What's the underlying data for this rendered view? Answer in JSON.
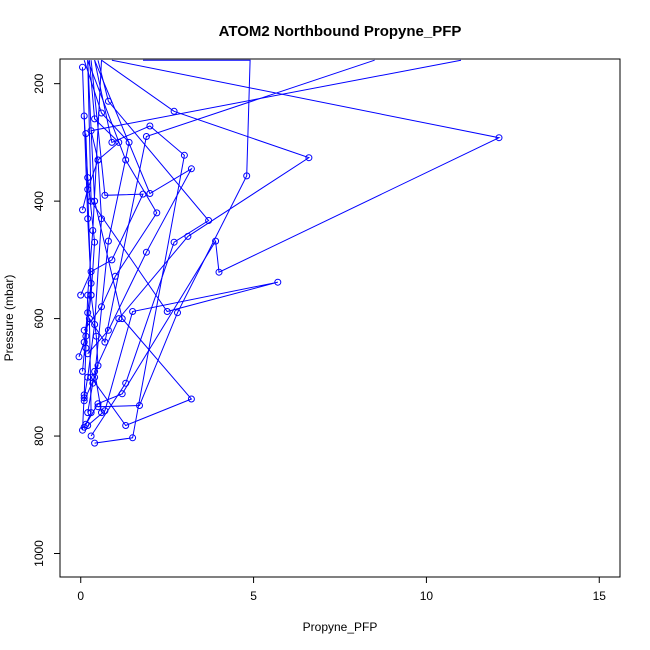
{
  "chart_data": {
    "type": "line",
    "title": "ATOM2 Northbound Propyne_PFP",
    "xlabel": "Propyne_PFP",
    "ylabel": "Pressure (mbar)",
    "xlim": [
      -0.6,
      15.6
    ],
    "ylim": [
      1040,
      158
    ],
    "y_reversed": true,
    "grid": false,
    "x_ticks": [
      0,
      5,
      10,
      15
    ],
    "x_tick_labels": [
      "0",
      "5",
      "10",
      "15"
    ],
    "y_ticks": [
      200,
      400,
      600,
      800,
      1000
    ],
    "y_tick_labels": [
      "200",
      "400",
      "600",
      "800",
      "1000"
    ],
    "series_color": "#0000ff",
    "marker": "open-circle",
    "series": [
      {
        "x": [
          0.05,
          0.1,
          0.15,
          0.2,
          0.35,
          0.6
        ],
        "y": [
          790,
          730,
          650,
          560,
          450,
          160
        ]
      },
      {
        "x": [
          0.3,
          1.3,
          2.7,
          3.7,
          0.8,
          0.5
        ],
        "y": [
          800,
          710,
          470,
          433,
          230,
          160
        ]
      },
      {
        "x": [
          0.4,
          1.5,
          3.0,
          2.0,
          0.9,
          0.4
        ],
        "y": [
          812,
          803,
          322,
          272,
          300,
          160
        ]
      },
      {
        "x": [
          0.1,
          0.5,
          1.2,
          3.9,
          4.0,
          12.1,
          0.9
        ],
        "y": [
          785,
          745,
          728,
          468,
          521,
          292,
          160
        ]
      },
      {
        "x": [
          0.2,
          0.7,
          1.5,
          5.7,
          2.5,
          0.3,
          0.2
        ],
        "y": [
          782,
          757,
          588,
          538,
          588,
          400,
          160
        ]
      },
      {
        "x": [
          0.6,
          0.4,
          1.1,
          3.1,
          6.6,
          2.7,
          0.6
        ],
        "y": [
          760,
          690,
          600,
          460,
          326,
          247,
          160
        ]
      },
      {
        "x": [
          0.3,
          1.3,
          3.2,
          1.2,
          0.4,
          0.2
        ],
        "y": [
          700,
          782,
          737,
          600,
          400,
          160
        ]
      },
      {
        "x": [
          0.5,
          1.7,
          2.8,
          4.8,
          4.9,
          1.8
        ],
        "y": [
          750,
          748,
          590,
          357,
          160,
          160
        ]
      },
      {
        "x": [
          0.2,
          0.8,
          1.9,
          3.2,
          2.0,
          0.4
        ],
        "y": [
          660,
          620,
          487,
          345,
          387,
          160
        ]
      },
      {
        "x": [
          0.1,
          0.6,
          1.0,
          2.2,
          1.3,
          0.2
        ],
        "y": [
          620,
          580,
          528,
          420,
          330,
          160
        ]
      },
      {
        "x": [
          0.0,
          0.3,
          0.9,
          1.8,
          0.7,
          0.3
        ],
        "y": [
          560,
          520,
          500,
          388,
          390,
          160
        ]
      },
      {
        "x": [
          0.1,
          0.4,
          0.8,
          1.4,
          0.6,
          0.1
        ],
        "y": [
          740,
          700,
          468,
          300,
          250,
          160
        ]
      },
      {
        "x": [
          0.05,
          0.2,
          0.5,
          1.1,
          0.4,
          0.25
        ],
        "y": [
          415,
          380,
          330,
          300,
          260,
          160
        ]
      },
      {
        "x": [
          0.15,
          0.3,
          0.25,
          0.7,
          1.9,
          8.5
        ],
        "y": [
          780,
          760,
          600,
          640,
          290,
          160
        ]
      },
      {
        "x": [
          0.1,
          0.2,
          0.4,
          0.6,
          0.5,
          0.3,
          11.0
        ],
        "y": [
          735,
          700,
          610,
          430,
          330,
          280,
          160
        ]
      },
      {
        "x": [
          -0.05,
          0.1,
          0.2,
          0.3,
          0.2,
          0.05
        ],
        "y": [
          665,
          640,
          590,
          540,
          430,
          172
        ]
      },
      {
        "x": [
          0.05,
          0.15,
          0.3,
          0.4,
          0.2,
          0.1
        ],
        "y": [
          690,
          630,
          560,
          470,
          360,
          255
        ]
      },
      {
        "x": [
          0.2,
          0.35,
          0.5,
          0.45,
          0.3,
          0.15
        ],
        "y": [
          760,
          710,
          680,
          630,
          560,
          285
        ]
      }
    ]
  }
}
